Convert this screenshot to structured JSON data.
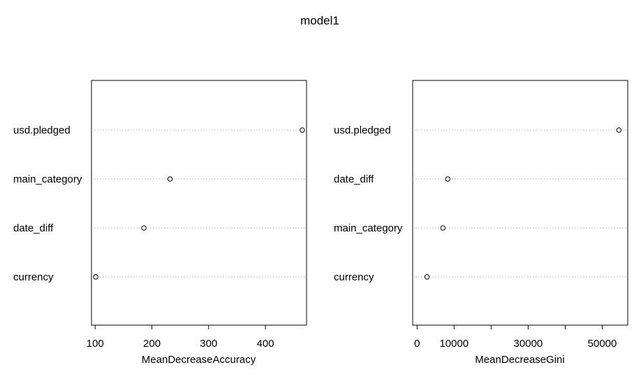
{
  "chart_title": "model1",
  "chart_data": [
    {
      "type": "scatter",
      "title": "",
      "xlabel": "MeanDecreaseAccuracy",
      "ylabel": "",
      "xlim": [
        96,
        470
      ],
      "xticks": [
        100,
        200,
        300,
        400
      ],
      "xtick_labels": [
        "100",
        "200",
        "300",
        "400"
      ],
      "categories": [
        "usd.pledged",
        "main_category",
        "date_diff",
        "currency"
      ],
      "values": [
        465,
        232,
        186,
        101
      ],
      "grid": "dotted horizontal guide lines per category",
      "legend": "none"
    },
    {
      "type": "scatter",
      "title": "",
      "xlabel": "MeanDecreaseGini",
      "ylabel": "",
      "xlim": [
        -800,
        56500
      ],
      "xticks": [
        0,
        10000,
        20000,
        30000,
        40000,
        50000
      ],
      "xtick_labels": [
        "0",
        "10000",
        "",
        "30000",
        "",
        "50000"
      ],
      "categories": [
        "usd.pledged",
        "date_diff",
        "main_category",
        "currency"
      ],
      "values": [
        54500,
        8300,
        7000,
        2700
      ],
      "grid": "dotted horizontal guide lines per category",
      "legend": "none"
    }
  ],
  "colors": {
    "points": "#000000",
    "guide_lines": "#b0b0b0",
    "frame": "#000000",
    "background": "#ffffff"
  }
}
